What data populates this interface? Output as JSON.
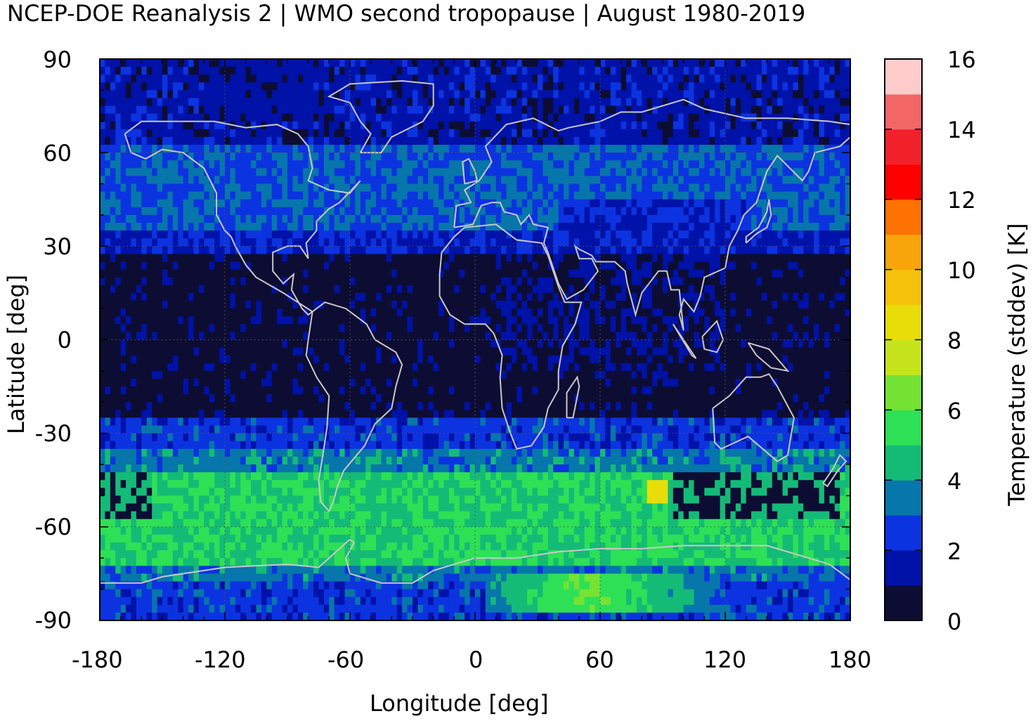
{
  "title": "NCEP-DOE Reanalysis 2 | WMO second tropopause | August 1980-2019",
  "chart_data": {
    "type": "heatmap",
    "title": "NCEP-DOE Reanalysis 2 | WMO second tropopause | August 1980-2019",
    "xlabel": "Longitude [deg]",
    "ylabel": "Latitude [deg]",
    "colorbar_label": "Temperature (stddev) [K]",
    "xlim": [
      -180,
      180
    ],
    "ylim": [
      -90,
      90
    ],
    "x_ticks": [
      "-180",
      "-120",
      "-60",
      "0",
      "60",
      "120",
      "180"
    ],
    "y_ticks": [
      "90",
      "60",
      "30",
      "0",
      "-30",
      "-60",
      "-90"
    ],
    "colorbar_ticks": [
      "16",
      "14",
      "12",
      "10",
      "8",
      "6",
      "4",
      "2",
      "0"
    ],
    "colorbar_range": [
      0,
      16
    ],
    "colorbar_step": 1,
    "colorbar_colors": [
      "#0d0d33",
      "#0012a8",
      "#0c33e0",
      "#0776aa",
      "#14bb77",
      "#2ee055",
      "#76e233",
      "#c6e41c",
      "#e8dd08",
      "#f4c20a",
      "#f7a50b",
      "#fd7203",
      "#fe0000",
      "#f2222a",
      "#f26666",
      "#ffcccc"
    ],
    "coastline_color": "#c8c8c8",
    "grid": true,
    "field_bands": [
      {
        "lat": [
          63,
          90
        ],
        "value": 1.5
      },
      {
        "lat": [
          35,
          63
        ],
        "value": 3.0
      },
      {
        "lat": [
          28,
          35
        ],
        "value": 1.8
      },
      {
        "lat": [
          -24,
          28
        ],
        "value": 0.4
      },
      {
        "lat": [
          -34,
          -24
        ],
        "value": 2.4
      },
      {
        "lat": [
          -42,
          -34
        ],
        "value": 3.5
      },
      {
        "lat": [
          -72,
          -42
        ],
        "value": 5.0
      },
      {
        "lat": [
          -78,
          -72
        ],
        "value": 3.4
      },
      {
        "lat": [
          -90,
          -78
        ],
        "value": 2.5
      }
    ]
  }
}
